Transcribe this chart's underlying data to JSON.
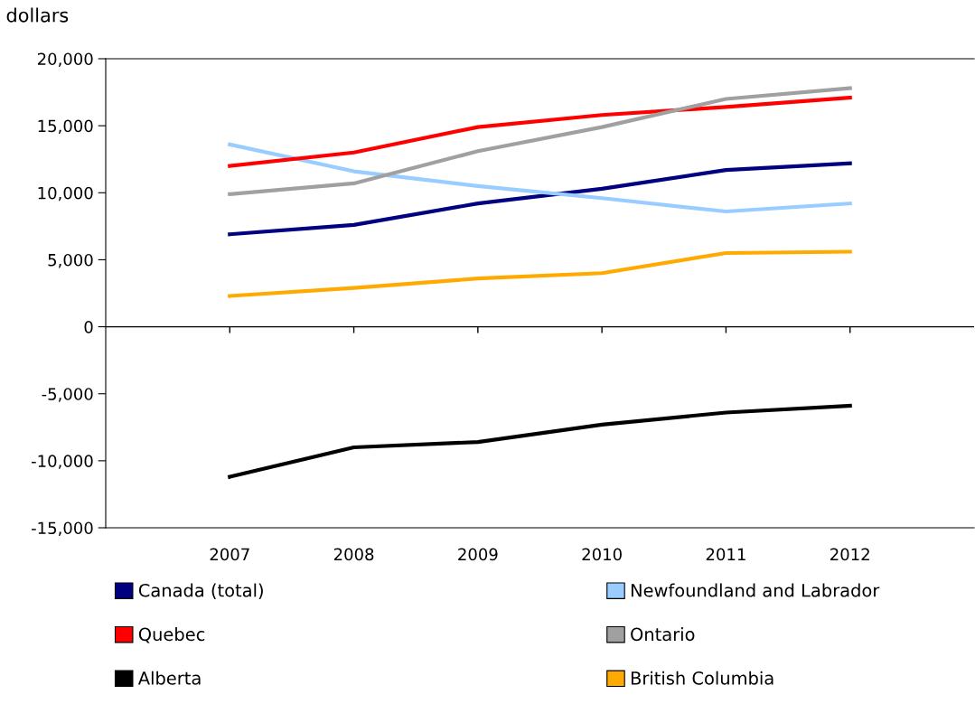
{
  "chart_data": {
    "type": "line",
    "ylabel": "dollars",
    "categories": [
      "2007",
      "2008",
      "2009",
      "2010",
      "2011",
      "2012"
    ],
    "series": [
      {
        "name": "Canada (total)",
        "color": "#000080",
        "values": [
          6900,
          7600,
          9200,
          10300,
          11700,
          12200
        ]
      },
      {
        "name": "Newfoundland and Labrador",
        "color": "#99ccff",
        "values": [
          13600,
          11600,
          10500,
          9600,
          8600,
          9200
        ]
      },
      {
        "name": "Quebec",
        "color": "#ff0000",
        "values": [
          12000,
          13000,
          14900,
          15800,
          16400,
          17100
        ]
      },
      {
        "name": "Ontario",
        "color": "#a0a0a0",
        "values": [
          9900,
          10700,
          13100,
          14900,
          17000,
          17800
        ]
      },
      {
        "name": "Alberta",
        "color": "#000000",
        "values": [
          -11200,
          -9000,
          -8600,
          -7300,
          -6400,
          -5900
        ]
      },
      {
        "name": "British Columbia",
        "color": "#ffaa00",
        "values": [
          2300,
          2900,
          3600,
          4000,
          5500,
          5600
        ]
      }
    ],
    "ylim": [
      -15000,
      20000
    ],
    "yticks": [
      {
        "value": -15000,
        "label": "-15,000"
      },
      {
        "value": -10000,
        "label": "-10,000"
      },
      {
        "value": -5000,
        "label": "-5,000"
      },
      {
        "value": 0,
        "label": "0"
      },
      {
        "value": 5000,
        "label": "5,000"
      },
      {
        "value": 10000,
        "label": "10,000"
      },
      {
        "value": 15000,
        "label": "15,000"
      },
      {
        "value": 20000,
        "label": "20,000"
      }
    ],
    "ref_lines": [
      {
        "axis": "y",
        "value": 0,
        "color": "#000000"
      }
    ],
    "grid": false,
    "legend": "bottom",
    "marker": "none",
    "line_style": "solid"
  }
}
